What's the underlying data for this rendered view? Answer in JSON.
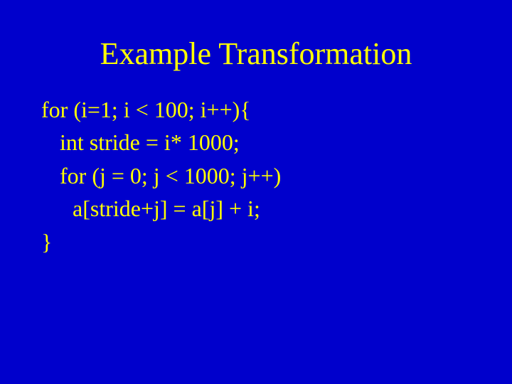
{
  "slide": {
    "title": "Example Transformation",
    "code": {
      "line1": "for (i=1; i < 100; i++){",
      "line2": "int stride = i* 1000;",
      "line3": "for (j = 0; j < 1000; j++)",
      "line4": "a[stride+j] = a[j] + i;",
      "line5": "}"
    },
    "colors": {
      "background": "#0000cc",
      "text": "#ffff00"
    },
    "fonts": {
      "family": "Times New Roman",
      "title_size": 44,
      "code_size": 32
    }
  }
}
